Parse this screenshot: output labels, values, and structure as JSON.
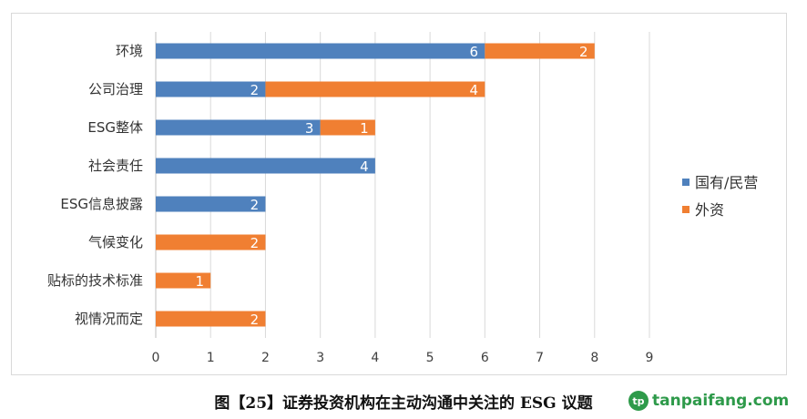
{
  "chart_data": {
    "type": "bar",
    "orientation": "horizontal",
    "stacked": true,
    "categories": [
      "环境",
      "公司治理",
      "ESG整体",
      "社会责任",
      "ESG信息披露",
      "气候变化",
      "贴标的技术标准",
      "视情况而定"
    ],
    "series": [
      {
        "name": "国有/民营",
        "color": "#4f81bd",
        "values": [
          6,
          2,
          3,
          4,
          2,
          0,
          0,
          0
        ]
      },
      {
        "name": "外资",
        "color": "#f07f32",
        "values": [
          2,
          4,
          1,
          0,
          0,
          2,
          1,
          2
        ]
      }
    ],
    "xlim": [
      0,
      9
    ],
    "xticks": [
      0,
      1,
      2,
      3,
      4,
      5,
      6,
      7,
      8,
      9
    ],
    "grid": "vertical",
    "legend_position": "right",
    "data_labels": true
  },
  "caption": "图【25】证券投资机构在主动沟通中关注的 ESG 议题",
  "watermark": {
    "logo_text": "tp",
    "text": "tanpaifang.com"
  }
}
